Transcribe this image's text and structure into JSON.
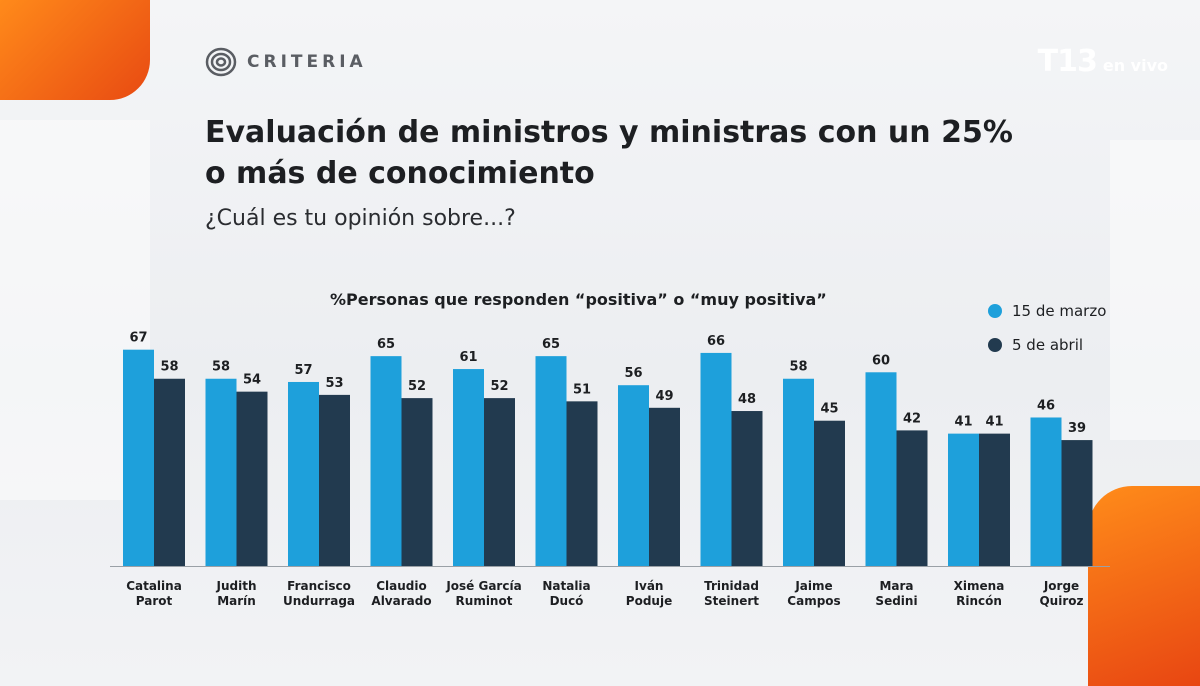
{
  "header": {
    "brand": "CRITERIA",
    "channel_brand": "T13",
    "channel_live": "en vivo"
  },
  "title_line1": "Evaluación de ministros y ministras con un 25%",
  "title_line2": "o más de conocimiento",
  "subtitle": "¿Cuál es tu opinión sobre...?",
  "colors": {
    "marzo": "#1ea0db",
    "abril": "#223a4f",
    "accent": "#f06a1c"
  },
  "chart_data": {
    "type": "bar",
    "title": "%Personas que responden “positiva” o “muy positiva”",
    "xlabel": "",
    "ylabel": "",
    "ylim": [
      0,
      70
    ],
    "grid": false,
    "legend_position": "top-right",
    "categories": [
      [
        "Catalina",
        "Parot"
      ],
      [
        "Judith",
        "Marín"
      ],
      [
        "Francisco",
        "Undurraga"
      ],
      [
        "Claudio",
        "Alvarado"
      ],
      [
        "José García",
        "Ruminot"
      ],
      [
        "Natalia",
        "Ducó"
      ],
      [
        "Iván",
        "Poduje"
      ],
      [
        "Trinidad",
        "Steinert"
      ],
      [
        "Jaime",
        "Campos"
      ],
      [
        "Mara",
        "Sedini"
      ],
      [
        "Ximena",
        "Rincón"
      ],
      [
        "Jorge",
        "Quiroz"
      ]
    ],
    "series": [
      {
        "name": "15 de marzo",
        "values": [
          67,
          58,
          57,
          65,
          61,
          65,
          56,
          66,
          58,
          60,
          41,
          46
        ]
      },
      {
        "name": "5 de abril",
        "values": [
          58,
          54,
          53,
          52,
          52,
          51,
          49,
          48,
          45,
          42,
          41,
          39
        ]
      }
    ]
  }
}
